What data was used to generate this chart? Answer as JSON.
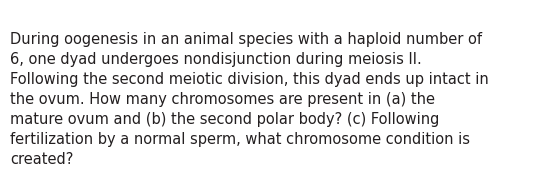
{
  "text": "During oogenesis in an animal species with a haploid number of\n6, one dyad undergoes nondisjunction during meiosis II.\nFollowing the second meiotic division, this dyad ends up intact in\nthe ovum. How many chromosomes are present in (a) the\nmature ovum and (b) the second polar body? (c) Following\nfertilization by a normal sperm, what chromosome condition is\ncreated?",
  "background_color": "#ffffff",
  "text_color": "#231f20",
  "font_size": 10.5,
  "fig_width": 5.58,
  "fig_height": 1.88,
  "dpi": 100
}
